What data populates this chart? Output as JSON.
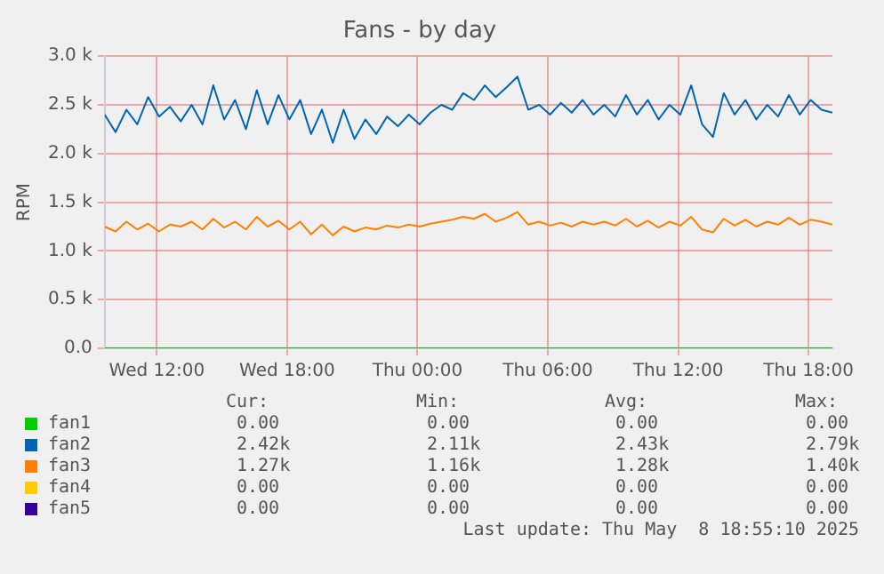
{
  "chart_data": {
    "type": "line",
    "title": "Fans - by day",
    "ylabel": "RPM",
    "x": [
      "2025-05-07T09:36",
      "2025-05-07T10:06",
      "2025-05-07T10:36",
      "2025-05-07T11:06",
      "2025-05-07T11:36",
      "2025-05-07T12:06",
      "2025-05-07T12:36",
      "2025-05-07T13:06",
      "2025-05-07T13:36",
      "2025-05-07T14:06",
      "2025-05-07T14:36",
      "2025-05-07T15:06",
      "2025-05-07T15:36",
      "2025-05-07T16:06",
      "2025-05-07T16:36",
      "2025-05-07T17:06",
      "2025-05-07T17:36",
      "2025-05-07T18:06",
      "2025-05-07T18:36",
      "2025-05-07T19:06",
      "2025-05-07T19:36",
      "2025-05-07T20:06",
      "2025-05-07T20:36",
      "2025-05-07T21:06",
      "2025-05-07T21:36",
      "2025-05-07T22:06",
      "2025-05-07T22:36",
      "2025-05-07T23:06",
      "2025-05-07T23:36",
      "2025-05-08T00:06",
      "2025-05-08T00:36",
      "2025-05-08T01:06",
      "2025-05-08T01:36",
      "2025-05-08T02:06",
      "2025-05-08T02:36",
      "2025-05-08T03:06",
      "2025-05-08T03:36",
      "2025-05-08T04:06",
      "2025-05-08T04:36",
      "2025-05-08T05:06",
      "2025-05-08T05:36",
      "2025-05-08T06:06",
      "2025-05-08T06:36",
      "2025-05-08T07:06",
      "2025-05-08T07:36",
      "2025-05-08T08:06",
      "2025-05-08T08:36",
      "2025-05-08T09:06",
      "2025-05-08T09:36",
      "2025-05-08T10:06",
      "2025-05-08T10:36",
      "2025-05-08T11:06",
      "2025-05-08T11:36",
      "2025-05-08T12:06",
      "2025-05-08T12:36",
      "2025-05-08T13:06",
      "2025-05-08T13:36",
      "2025-05-08T14:06",
      "2025-05-08T14:36",
      "2025-05-08T15:06",
      "2025-05-08T15:36",
      "2025-05-08T16:06",
      "2025-05-08T16:36",
      "2025-05-08T17:06",
      "2025-05-08T17:36",
      "2025-05-08T18:06",
      "2025-05-08T18:36",
      "2025-05-08T19:06"
    ],
    "series": [
      {
        "name": "fan2",
        "color": "#0066b3",
        "values": [
          2400,
          2220,
          2450,
          2300,
          2580,
          2380,
          2480,
          2330,
          2500,
          2300,
          2700,
          2350,
          2550,
          2250,
          2650,
          2300,
          2600,
          2350,
          2550,
          2200,
          2450,
          2110,
          2450,
          2150,
          2350,
          2200,
          2380,
          2280,
          2400,
          2300,
          2420,
          2500,
          2450,
          2620,
          2550,
          2700,
          2580,
          2680,
          2790,
          2450,
          2500,
          2400,
          2520,
          2420,
          2550,
          2400,
          2500,
          2380,
          2600,
          2400,
          2550,
          2350,
          2500,
          2400,
          2700,
          2300,
          2170,
          2620,
          2400,
          2550,
          2350,
          2500,
          2380,
          2600,
          2400,
          2550,
          2450,
          2420
        ]
      },
      {
        "name": "fan3",
        "color": "#ff8000",
        "values": [
          1250,
          1200,
          1300,
          1220,
          1280,
          1200,
          1270,
          1250,
          1300,
          1220,
          1330,
          1240,
          1300,
          1220,
          1350,
          1250,
          1310,
          1220,
          1300,
          1170,
          1270,
          1160,
          1250,
          1200,
          1240,
          1220,
          1260,
          1240,
          1270,
          1250,
          1280,
          1300,
          1320,
          1350,
          1330,
          1380,
          1300,
          1340,
          1400,
          1270,
          1300,
          1260,
          1290,
          1250,
          1300,
          1270,
          1300,
          1260,
          1330,
          1250,
          1310,
          1240,
          1300,
          1260,
          1350,
          1220,
          1190,
          1330,
          1260,
          1320,
          1250,
          1300,
          1270,
          1340,
          1270,
          1320,
          1300,
          1270
        ]
      },
      {
        "name": "fan4",
        "color": "#ffcc00",
        "values": [
          null,
          null,
          null,
          null,
          null,
          null,
          null,
          null,
          null,
          null,
          null,
          null,
          null,
          null,
          null,
          null,
          null,
          null,
          null,
          null,
          null,
          null,
          null,
          null,
          null,
          null,
          null,
          null,
          null,
          null,
          null,
          null,
          null,
          null,
          null,
          null,
          null,
          null,
          null,
          null,
          null,
          null,
          null,
          null,
          null,
          null,
          null,
          null,
          null,
          null,
          null,
          null,
          null,
          null,
          null,
          null,
          null,
          null,
          null,
          null,
          null,
          null,
          null,
          null,
          null,
          null,
          null,
          null
        ]
      },
      {
        "name": "fan5",
        "color": "#330099",
        "values": [
          null,
          null,
          null,
          null,
          null,
          null,
          null,
          null,
          null,
          null,
          null,
          null,
          null,
          null,
          null,
          null,
          null,
          null,
          null,
          null,
          null,
          null,
          null,
          null,
          null,
          null,
          null,
          null,
          null,
          null,
          null,
          null,
          null,
          null,
          null,
          null,
          null,
          null,
          null,
          null,
          null,
          null,
          null,
          null,
          null,
          null,
          null,
          null,
          null,
          null,
          null,
          null,
          null,
          null,
          null,
          null,
          null,
          null,
          null,
          null,
          null,
          null,
          null,
          null,
          null,
          null,
          null,
          null
        ]
      },
      {
        "name": "fan1",
        "color": "#00cc00",
        "values": [
          0,
          0,
          0,
          0,
          0,
          0,
          0,
          0,
          0,
          0,
          0,
          0,
          0,
          0,
          0,
          0,
          0,
          0,
          0,
          0,
          0,
          0,
          0,
          0,
          0,
          0,
          0,
          0,
          0,
          0,
          0,
          0,
          0,
          0,
          0,
          0,
          0,
          0,
          0,
          0,
          0,
          0,
          0,
          0,
          0,
          0,
          0,
          0,
          0,
          0,
          0,
          0,
          0,
          0,
          0,
          0,
          0,
          0,
          0,
          0,
          0,
          0,
          0,
          0,
          0,
          0,
          0,
          0
        ]
      }
    ],
    "xlim": [
      "2025-05-07T09:36",
      "2025-05-08T19:06"
    ],
    "xticks": [
      {
        "value": "2025-05-07T12:00",
        "label": "Wed 12:00"
      },
      {
        "value": "2025-05-07T18:00",
        "label": "Wed 18:00"
      },
      {
        "value": "2025-05-08T00:00",
        "label": "Thu 00:00"
      },
      {
        "value": "2025-05-08T06:00",
        "label": "Thu 06:00"
      },
      {
        "value": "2025-05-08T12:00",
        "label": "Thu 12:00"
      },
      {
        "value": "2025-05-08T18:00",
        "label": "Thu 18:00"
      }
    ],
    "ylim": [
      0,
      3000
    ],
    "yticks": [
      {
        "value": 0,
        "label": "0.0"
      },
      {
        "value": 500,
        "label": "0.5 k"
      },
      {
        "value": 1000,
        "label": "1.0 k"
      },
      {
        "value": 1500,
        "label": "1.5 k"
      },
      {
        "value": 2000,
        "label": "2.0 k"
      },
      {
        "value": 2500,
        "label": "2.5 k"
      },
      {
        "value": 3000,
        "label": "3.0 k"
      }
    ],
    "grid": true,
    "legend": "bottom",
    "marker": "none",
    "line_style": "solid",
    "annotations": [
      "Cur:",
      "Min:",
      "Avg:",
      "Max:",
      "0.00",
      "0.00",
      "0.00",
      "0.00",
      "2.42k",
      "2.11k",
      "2.43k",
      "2.79k",
      "1.27k",
      "1.16k",
      "1.28k",
      "1.40k",
      "0.00",
      "0.00",
      "0.00",
      "0.00",
      "0.00",
      "0.00",
      "0.00",
      "0.00",
      "Last update: Thu May  8 18:55:10 2025"
    ]
  }
}
